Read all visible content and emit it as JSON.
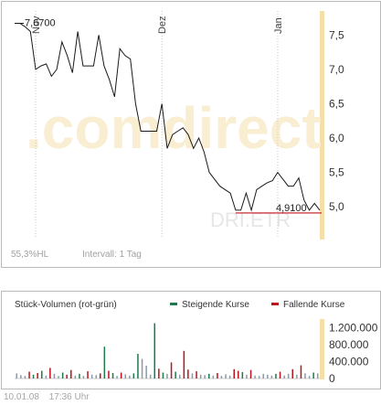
{
  "price_chart": {
    "watermark": ".comdirect",
    "ticker": "DRI.ETR",
    "stats": {
      "hl": "55,3%HL",
      "interval": "Intervall: 1 Tag"
    },
    "start_label": "7,6700",
    "last_label": "4,9100",
    "colors": {
      "line": "#1a1a1a",
      "last_line": "#c0141e",
      "right_axis": "#f5dfa8",
      "grid": "#c8c8c8"
    }
  },
  "volume_chart": {
    "title": "Stück-Volumen (rot-grün)",
    "legend": {
      "rising": "Steigende Kurse",
      "falling": "Fallende Kurse"
    },
    "colors": {
      "rising": "#1e7a4a",
      "falling": "#b8141c",
      "neutral": "#8c9aa6"
    }
  },
  "footer": {
    "date": "10.01.08",
    "time": "17:36 Uhr"
  },
  "chart_data": [
    {
      "type": "line",
      "x_labels": [
        "Nov",
        "Dez",
        "Jan"
      ],
      "y_ticks": [
        5.0,
        5.5,
        6.0,
        6.5,
        7.0,
        7.5
      ],
      "y_tick_labels": [
        "5,0",
        "5,5",
        "6,0",
        "6,5",
        "7,0",
        "7,5"
      ],
      "ylim": [
        4.55,
        7.85
      ],
      "grid": "vertical dotted month separators",
      "values": [
        7.67,
        7.67,
        7.62,
        7.55,
        7.0,
        7.05,
        7.08,
        6.9,
        7.0,
        7.4,
        7.2,
        6.95,
        7.55,
        7.05,
        7.05,
        7.05,
        7.5,
        7.05,
        6.85,
        6.6,
        7.3,
        7.2,
        7.15,
        6.5,
        6.1,
        6.1,
        6.1,
        6.1,
        6.5,
        5.85,
        6.05,
        6.1,
        6.15,
        6.05,
        5.85,
        6.0,
        5.8,
        5.5,
        5.4,
        5.3,
        5.25,
        5.2,
        4.95,
        4.95,
        5.2,
        4.95,
        5.25,
        5.3,
        5.35,
        5.38,
        5.5,
        5.4,
        5.3,
        5.3,
        5.42,
        5.1,
        4.95,
        5.05,
        4.95
      ],
      "start_value": 7.67,
      "last_value": 4.91
    },
    {
      "type": "bar",
      "title": "Stück-Volumen (rot-grün)",
      "y_ticks": [
        0,
        400000,
        800000,
        1200000
      ],
      "y_tick_labels": [
        "0",
        "400.000",
        "800.000",
        "1.200.000"
      ],
      "ylim": [
        0,
        1400000
      ],
      "bars": [
        {
          "v": 120000,
          "c": "n"
        },
        {
          "v": 80000,
          "c": "n"
        },
        {
          "v": 60000,
          "c": "n"
        },
        {
          "v": 160000,
          "c": "r"
        },
        {
          "v": 90000,
          "c": "g"
        },
        {
          "v": 130000,
          "c": "r"
        },
        {
          "v": 180000,
          "c": "g"
        },
        {
          "v": 70000,
          "c": "n"
        },
        {
          "v": 250000,
          "c": "r"
        },
        {
          "v": 110000,
          "c": "n"
        },
        {
          "v": 60000,
          "c": "n"
        },
        {
          "v": 140000,
          "c": "g"
        },
        {
          "v": 90000,
          "c": "r"
        },
        {
          "v": 200000,
          "c": "r"
        },
        {
          "v": 70000,
          "c": "n"
        },
        {
          "v": 110000,
          "c": "g"
        },
        {
          "v": 60000,
          "c": "n"
        },
        {
          "v": 170000,
          "c": "r"
        },
        {
          "v": 90000,
          "c": "n"
        },
        {
          "v": 80000,
          "c": "n"
        },
        {
          "v": 120000,
          "c": "r"
        },
        {
          "v": 750000,
          "c": "g"
        },
        {
          "v": 180000,
          "c": "r"
        },
        {
          "v": 130000,
          "c": "g"
        },
        {
          "v": 60000,
          "c": "n"
        },
        {
          "v": 140000,
          "c": "r"
        },
        {
          "v": 100000,
          "c": "n"
        },
        {
          "v": 70000,
          "c": "n"
        },
        {
          "v": 120000,
          "c": "g"
        },
        {
          "v": 580000,
          "c": "g"
        },
        {
          "v": 460000,
          "c": "n"
        },
        {
          "v": 300000,
          "c": "n"
        },
        {
          "v": 90000,
          "c": "n"
        },
        {
          "v": 1300000,
          "c": "g"
        },
        {
          "v": 230000,
          "c": "r"
        },
        {
          "v": 140000,
          "c": "g"
        },
        {
          "v": 110000,
          "c": "n"
        },
        {
          "v": 380000,
          "c": "r"
        },
        {
          "v": 160000,
          "c": "g"
        },
        {
          "v": 90000,
          "c": "n"
        },
        {
          "v": 650000,
          "c": "r"
        },
        {
          "v": 210000,
          "c": "r"
        },
        {
          "v": 120000,
          "c": "n"
        },
        {
          "v": 170000,
          "c": "r"
        },
        {
          "v": 90000,
          "c": "n"
        },
        {
          "v": 80000,
          "c": "n"
        },
        {
          "v": 110000,
          "c": "g"
        },
        {
          "v": 70000,
          "c": "n"
        },
        {
          "v": 130000,
          "c": "r"
        },
        {
          "v": 60000,
          "c": "n"
        },
        {
          "v": 100000,
          "c": "n"
        },
        {
          "v": 70000,
          "c": "n"
        },
        {
          "v": 220000,
          "c": "r"
        },
        {
          "v": 180000,
          "c": "r"
        },
        {
          "v": 150000,
          "c": "g"
        },
        {
          "v": 90000,
          "c": "n"
        },
        {
          "v": 200000,
          "c": "r"
        },
        {
          "v": 70000,
          "c": "n"
        },
        {
          "v": 60000,
          "c": "n"
        },
        {
          "v": 110000,
          "c": "n"
        },
        {
          "v": 90000,
          "c": "n"
        },
        {
          "v": 70000,
          "c": "n"
        },
        {
          "v": 110000,
          "c": "g"
        },
        {
          "v": 160000,
          "c": "r"
        },
        {
          "v": 70000,
          "c": "n"
        },
        {
          "v": 110000,
          "c": "n"
        },
        {
          "v": 220000,
          "c": "r"
        },
        {
          "v": 90000,
          "c": "n"
        },
        {
          "v": 310000,
          "c": "r"
        },
        {
          "v": 120000,
          "c": "n"
        },
        {
          "v": 60000,
          "c": "n"
        },
        {
          "v": 140000,
          "c": "g"
        },
        {
          "v": 120000,
          "c": "n"
        }
      ]
    }
  ]
}
